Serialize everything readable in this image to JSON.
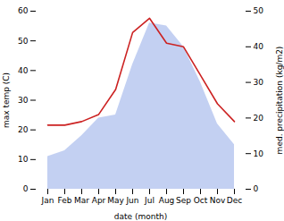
{
  "chart_data": {
    "type": "area",
    "xlabel": "date (month)",
    "ylabel": "max temp (C)",
    "y2label": "med. precipitation (kg/m2)",
    "categories": [
      "Jan",
      "Feb",
      "Mar",
      "Apr",
      "May",
      "Jun",
      "Jul",
      "Aug",
      "Sep",
      "Oct",
      "Nov",
      "Dec"
    ],
    "series": [
      {
        "type": "area",
        "color": "#b8c8f0",
        "values": [
          11,
          13,
          18,
          24,
          25,
          42,
          56,
          55,
          48,
          36,
          22,
          15
        ]
      },
      {
        "type": "line",
        "color": "#cc2222",
        "axis": "y2",
        "values": [
          18,
          18,
          19,
          21,
          28,
          44,
          48,
          41,
          40,
          32,
          24,
          19
        ]
      }
    ],
    "ylim": [
      0,
      60
    ],
    "yticks": [
      0,
      10,
      20,
      30,
      40,
      50,
      60
    ],
    "y2lim": [
      0,
      50
    ],
    "y2ticks": [
      0,
      10,
      20,
      30,
      40,
      50
    ],
    "grid": false
  }
}
